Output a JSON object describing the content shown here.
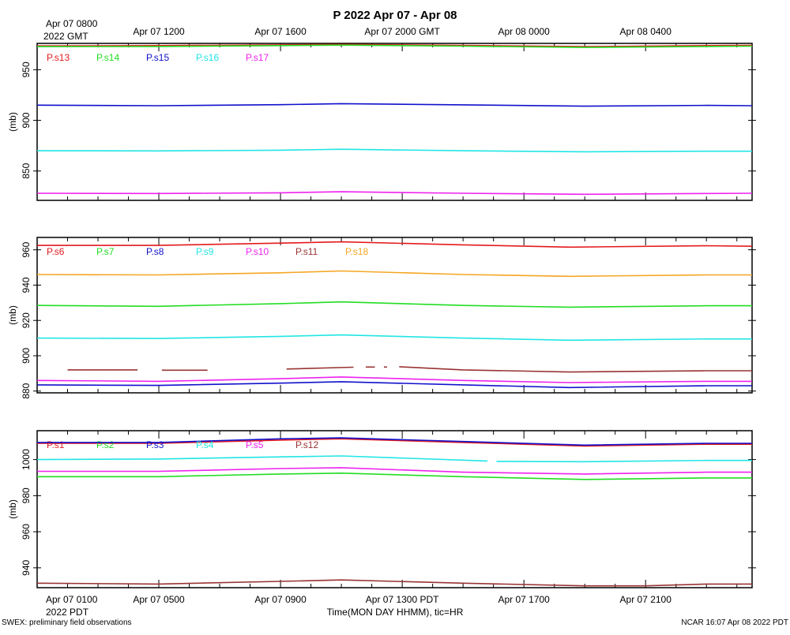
{
  "title": "P 2022 Apr 07 - Apr 08",
  "top_axis": {
    "first_label_lines": [
      "Apr 07 0800",
      "2022 GMT"
    ],
    "labels": [
      "Apr 07 1200",
      "Apr 07 1600",
      "Apr 07 2000 GMT",
      "Apr 08 0000",
      "Apr 08 0400"
    ]
  },
  "bottom_axis": {
    "first_label_lines": [
      "Apr 07 0100",
      "2022 PDT"
    ],
    "labels": [
      "Apr 07 0500",
      "Apr 07 0900",
      "Apr 07 1300 PDT",
      "Apr 07 1700",
      "Apr 07 2100"
    ],
    "xlabel": "Time(MON DAY HHMM), tic=HR"
  },
  "footer": {
    "left": "SWEX: preliminary field observations",
    "right": "NCAR 16:07 Apr 08 2022 PDT"
  },
  "colors": {
    "red": "#e41a1c",
    "green": "#22dd22",
    "blue": "#1111cc",
    "cyan": "#22e5e5",
    "magenta": "#ee22ee",
    "brown": "#993333",
    "orange": "#f5a623"
  },
  "chart_data": [
    {
      "type": "line",
      "panel": "top",
      "ylabel": "(mb)",
      "ylim": [
        821,
        976
      ],
      "yticks": [
        850,
        900,
        950
      ],
      "x_unit": "hours PDT, Apr 07",
      "xlim": [
        0,
        23.5
      ],
      "series": [
        {
          "name": "P.s13",
          "color": "red",
          "x": [
            0,
            4,
            8,
            10,
            14,
            18,
            22,
            23.5
          ],
          "y": [
            973.5,
            973.8,
            974.5,
            975.0,
            974.0,
            972.8,
            973.8,
            974.0
          ]
        },
        {
          "name": "P.s14",
          "color": "green",
          "x": [
            0,
            4,
            8,
            10,
            14,
            18,
            22,
            23.5
          ],
          "y": [
            972.8,
            973.0,
            973.8,
            974.3,
            973.3,
            972.0,
            973.0,
            973.3
          ]
        },
        {
          "name": "P.s15",
          "color": "blue",
          "x": [
            0,
            4,
            8,
            10,
            14,
            18,
            22,
            23.5
          ],
          "y": [
            915.0,
            914.5,
            915.5,
            916.5,
            915.3,
            914.0,
            914.8,
            914.5
          ]
        },
        {
          "name": "P.s16",
          "color": "cyan",
          "x": [
            0,
            4,
            8,
            10,
            14,
            18,
            22,
            23.5
          ],
          "y": [
            870.0,
            869.8,
            870.5,
            871.5,
            870.0,
            869.0,
            869.5,
            869.5
          ]
        },
        {
          "name": "P.s17",
          "color": "magenta",
          "x": [
            0,
            4,
            8,
            10,
            14,
            18,
            22,
            23.5
          ],
          "y": [
            828.0,
            827.8,
            828.5,
            829.5,
            828.0,
            827.0,
            827.8,
            828.0
          ]
        }
      ]
    },
    {
      "type": "line",
      "panel": "middle",
      "ylabel": "(mb)",
      "ylim": [
        879,
        967
      ],
      "yticks": [
        880,
        900,
        920,
        940,
        960
      ],
      "x_unit": "hours PDT, Apr 07",
      "xlim": [
        0,
        23.5
      ],
      "series": [
        {
          "name": "P.s6",
          "color": "red",
          "x": [
            0,
            4,
            8,
            10,
            14,
            17.5,
            22,
            23.5
          ],
          "y": [
            962.5,
            962.5,
            963.8,
            964.5,
            962.8,
            961.5,
            962.3,
            962.0
          ]
        },
        {
          "name": "P.s7",
          "color": "green",
          "x": [
            0,
            4,
            8,
            10,
            14,
            17.5,
            22,
            23.5
          ],
          "y": [
            928.5,
            928.0,
            929.5,
            930.5,
            928.5,
            927.5,
            928.3,
            928.3
          ]
        },
        {
          "name": "P.s8",
          "color": "blue",
          "x": [
            0,
            4,
            8,
            10,
            14,
            17.5,
            22,
            23.5
          ],
          "y": [
            883.5,
            883.2,
            884.5,
            885.3,
            883.5,
            882.0,
            883.0,
            883.0
          ]
        },
        {
          "name": "P.s9",
          "color": "cyan",
          "x": [
            0,
            4,
            8,
            10,
            14,
            17.5,
            22,
            23.5
          ],
          "y": [
            910.0,
            909.8,
            911.0,
            911.8,
            910.0,
            908.8,
            909.5,
            909.5
          ]
        },
        {
          "name": "P.s10",
          "color": "magenta",
          "x": [
            0,
            4,
            8,
            10,
            14,
            17.5,
            22,
            23.5
          ],
          "y": [
            886.0,
            885.5,
            887.0,
            888.0,
            886.0,
            884.8,
            885.5,
            885.5
          ]
        },
        {
          "name": "P.s11",
          "color": "brown",
          "x": [
            1.0,
            3.3,
            null,
            4.1,
            5.6,
            null,
            8.2,
            10.4,
            null,
            10.8,
            11.1,
            null,
            11.4,
            11.5,
            null,
            11.9,
            14,
            17.5,
            22,
            23.5
          ],
          "y": [
            892.0,
            892.0,
            null,
            891.8,
            891.8,
            null,
            892.5,
            893.5,
            null,
            893.6,
            893.6,
            null,
            893.6,
            893.6,
            null,
            893.8,
            892.0,
            890.8,
            891.5,
            891.5
          ]
        },
        {
          "name": "P.s18",
          "color": "orange",
          "x": [
            0,
            4,
            8,
            10,
            14,
            17.5,
            22,
            23.5
          ],
          "y": [
            946.0,
            945.8,
            947.0,
            948.0,
            946.0,
            945.0,
            945.8,
            945.8
          ]
        }
      ]
    },
    {
      "type": "line",
      "panel": "bottom",
      "ylabel": "(mb)",
      "ylim": [
        929,
        1016
      ],
      "yticks": [
        940,
        960,
        980,
        1000
      ],
      "x_unit": "hours PDT, Apr 07",
      "xlim": [
        0,
        23.5
      ],
      "series": [
        {
          "name": "P.s1",
          "color": "red",
          "x": [
            0,
            4,
            8,
            10,
            14,
            18,
            22,
            23.5
          ],
          "y": [
            1009.0,
            1009.0,
            1010.8,
            1011.5,
            1009.5,
            1007.5,
            1008.5,
            1008.5
          ]
        },
        {
          "name": "P.s2",
          "color": "green",
          "x": [
            0,
            4,
            8,
            10,
            14,
            18,
            22,
            23.5
          ],
          "y": [
            990.5,
            990.5,
            992.0,
            992.5,
            990.5,
            989.0,
            989.8,
            989.8
          ]
        },
        {
          "name": "P.s3",
          "color": "blue",
          "x": [
            0,
            4,
            8,
            10,
            14,
            18,
            22,
            23.5
          ],
          "y": [
            1009.5,
            1009.5,
            1011.5,
            1012.0,
            1010.0,
            1008.0,
            1009.0,
            1009.0
          ]
        },
        {
          "name": "P.s4",
          "color": "cyan",
          "x": [
            0,
            4,
            8,
            10,
            14.8,
            null,
            15.1,
            18,
            22,
            23.5
          ],
          "y": [
            1000.0,
            1000.3,
            1001.5,
            1002.0,
            999.2,
            null,
            999.0,
            998.8,
            999.5,
            999.5
          ]
        },
        {
          "name": "P.s5",
          "color": "magenta",
          "x": [
            0,
            4,
            8,
            10,
            14,
            18,
            22,
            23.5
          ],
          "y": [
            993.5,
            993.5,
            995.0,
            995.5,
            993.0,
            992.0,
            993.0,
            993.0
          ]
        },
        {
          "name": "P.s12",
          "color": "brown",
          "x": [
            0,
            4,
            8,
            10,
            14,
            18,
            20,
            22,
            23.5
          ],
          "y": [
            931.5,
            931.0,
            932.5,
            933.3,
            931.5,
            930.0,
            930.0,
            931.0,
            931.0
          ]
        }
      ]
    }
  ]
}
